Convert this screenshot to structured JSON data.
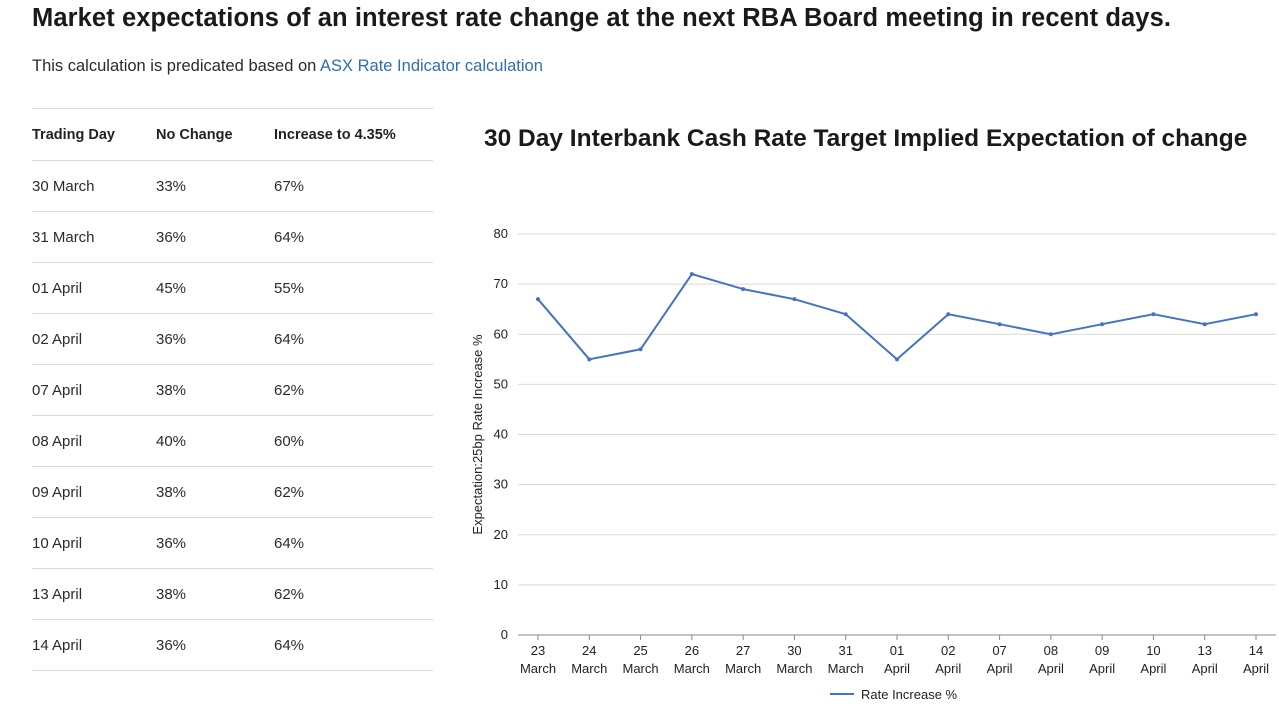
{
  "page": {
    "title": "Market expectations of an interest rate change at the next RBA Board meeting in recent days.",
    "subtitle_prefix": "This calculation is predicated based on ",
    "subtitle_link": "ASX Rate Indicator calculation"
  },
  "table": {
    "headers": [
      "Trading Day",
      "No Change",
      "Increase to 4.35%"
    ],
    "rows": [
      [
        "30 March",
        "33%",
        "67%"
      ],
      [
        "31 March",
        "36%",
        "64%"
      ],
      [
        "01 April",
        "45%",
        "55%"
      ],
      [
        "02 April",
        "36%",
        "64%"
      ],
      [
        "07 April",
        "38%",
        "62%"
      ],
      [
        "08 April",
        "40%",
        "60%"
      ],
      [
        "09 April",
        "38%",
        "62%"
      ],
      [
        "10 April",
        "36%",
        "64%"
      ],
      [
        "13 April",
        "38%",
        "62%"
      ],
      [
        "14 April",
        "36%",
        "64%"
      ]
    ]
  },
  "chart_data": {
    "type": "line",
    "title": "30 Day Interbank Cash Rate Target Implied Expectation of change",
    "ylabel": "Expectation:25bp Rate Increase %",
    "xlabel": "",
    "ylim": [
      0,
      80
    ],
    "yticks": [
      0,
      10,
      20,
      30,
      40,
      50,
      60,
      70,
      80
    ],
    "grid": true,
    "categories": [
      [
        "23",
        "March"
      ],
      [
        "24",
        "March"
      ],
      [
        "25",
        "March"
      ],
      [
        "26",
        "March"
      ],
      [
        "27",
        "March"
      ],
      [
        "30",
        "March"
      ],
      [
        "31",
        "March"
      ],
      [
        "01",
        "April"
      ],
      [
        "02",
        "April"
      ],
      [
        "07",
        "April"
      ],
      [
        "08",
        "April"
      ],
      [
        "09",
        "April"
      ],
      [
        "10",
        "April"
      ],
      [
        "13",
        "April"
      ],
      [
        "14",
        "April"
      ]
    ],
    "series": [
      {
        "name": "Rate Increase %",
        "color": "#4472c4",
        "values": [
          67,
          55,
          57,
          72,
          69,
          67,
          64,
          55,
          64,
          62,
          60,
          62,
          64,
          62,
          64
        ]
      }
    ],
    "legend": "bottom"
  }
}
